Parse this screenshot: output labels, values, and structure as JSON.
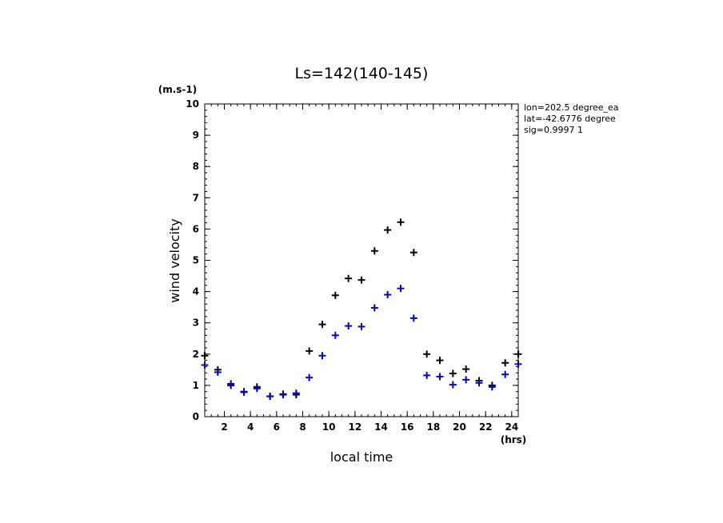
{
  "chart_data": {
    "type": "scatter",
    "title": "Ls=142(140-145)",
    "xlabel": "local time",
    "ylabel": "wind velocity",
    "x_unit": "(hrs)",
    "y_unit": "(m.s-1)",
    "xlim": [
      0.5,
      24.5
    ],
    "ylim": [
      0,
      10
    ],
    "x_ticks": [
      2,
      4,
      6,
      8,
      10,
      12,
      14,
      16,
      18,
      20,
      22,
      24
    ],
    "y_ticks": [
      0,
      1,
      2,
      3,
      4,
      5,
      6,
      7,
      8,
      9,
      10
    ],
    "grid": false,
    "annotations": [
      "lon=202.5 degree_ea",
      "lat=-42.6776 degree",
      "sig=0.9997 1"
    ],
    "x": [
      0.5,
      1.5,
      2.5,
      3.5,
      4.5,
      5.5,
      6.5,
      7.5,
      8.5,
      9.5,
      10.5,
      11.5,
      12.5,
      13.5,
      14.5,
      15.5,
      16.5,
      17.5,
      18.5,
      19.5,
      20.5,
      21.5,
      22.5,
      23.5,
      24.5
    ],
    "series": [
      {
        "color": "#000000",
        "values": [
          1.95,
          1.5,
          1.0,
          0.8,
          0.95,
          0.65,
          0.72,
          0.7,
          2.1,
          2.95,
          3.88,
          4.42,
          4.37,
          5.3,
          5.97,
          6.22,
          5.25,
          2.0,
          1.8,
          1.38,
          1.52,
          1.15,
          1.0,
          1.72,
          2.0
        ]
      },
      {
        "color": "#0000cc",
        "values": [
          1.65,
          1.42,
          1.05,
          0.78,
          0.9,
          0.65,
          0.7,
          0.75,
          1.25,
          1.95,
          2.6,
          2.9,
          2.88,
          3.48,
          3.9,
          4.1,
          3.15,
          1.32,
          1.28,
          1.02,
          1.18,
          1.08,
          0.95,
          1.35,
          1.68
        ]
      }
    ]
  }
}
